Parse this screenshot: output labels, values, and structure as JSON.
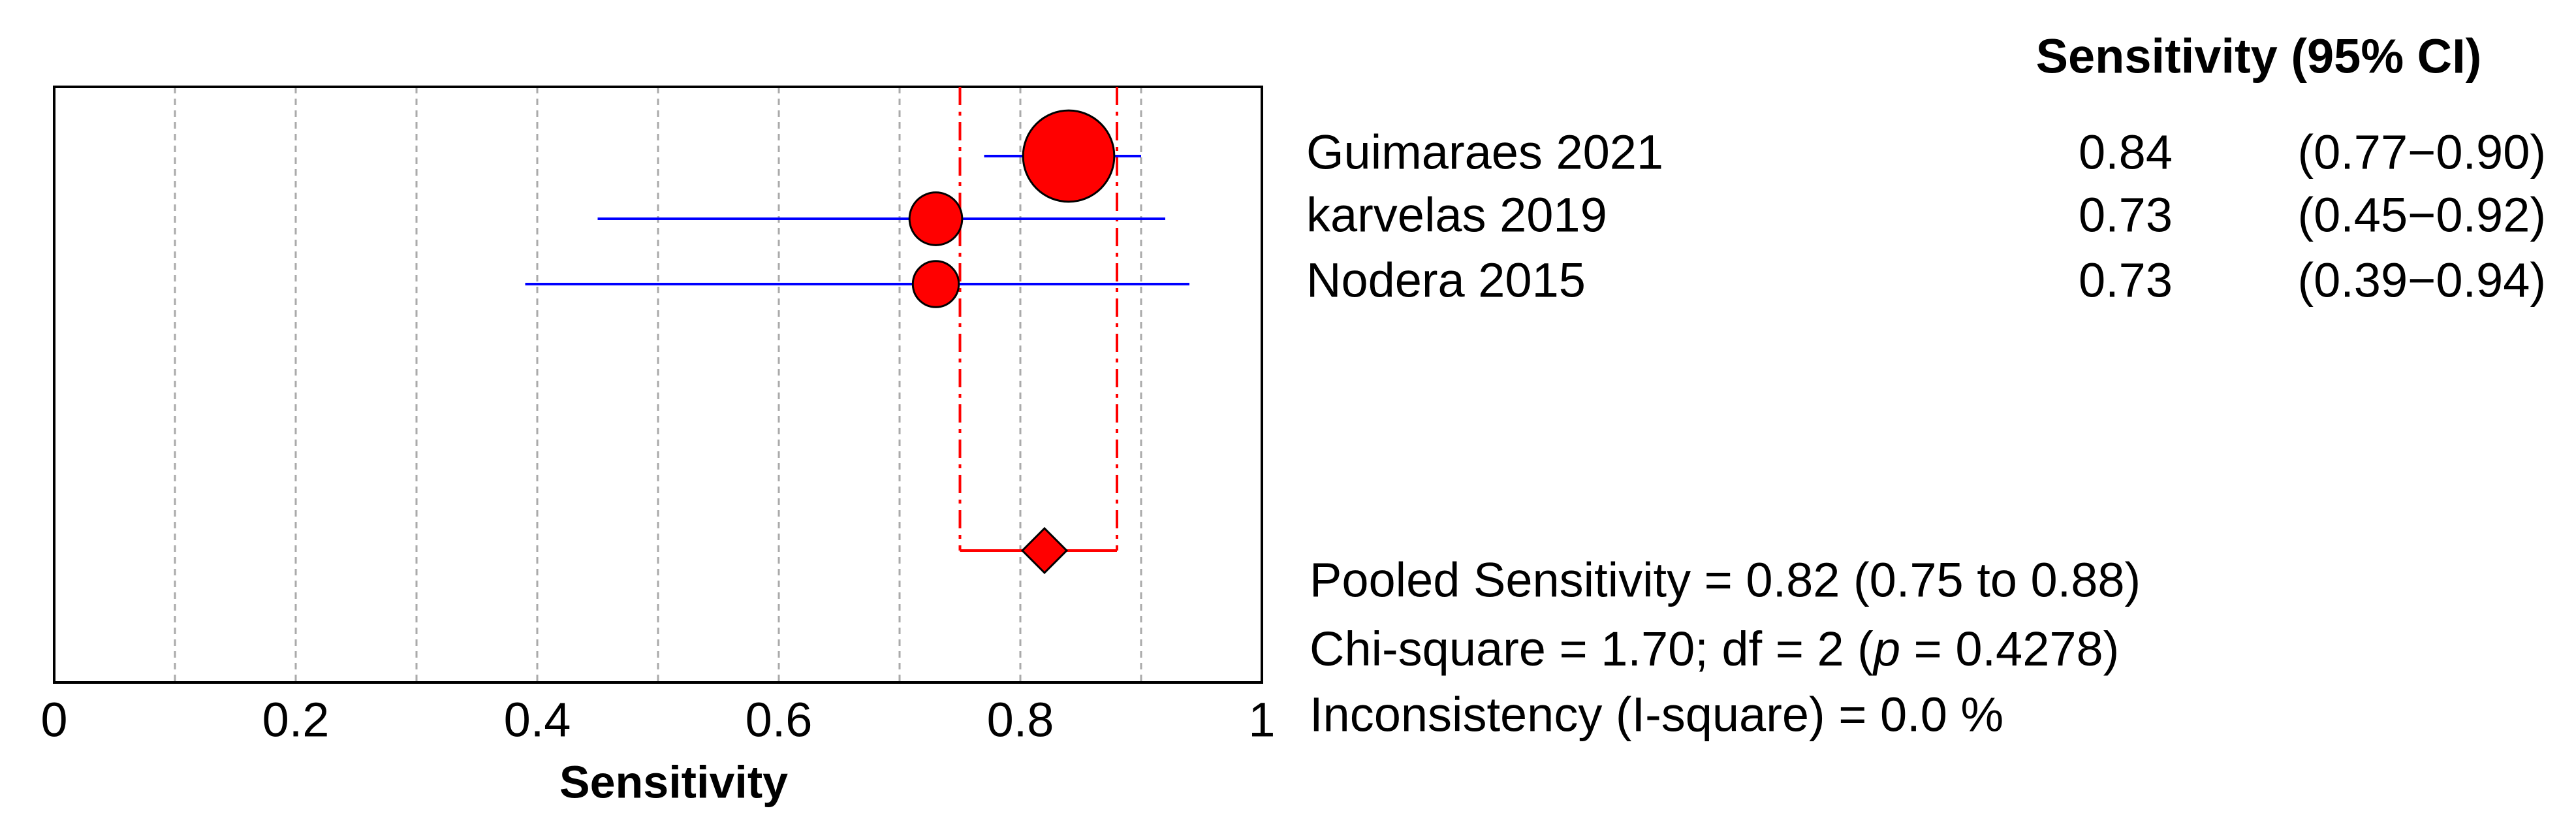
{
  "chart_data": {
    "type": "forest",
    "header": "Sensitivity (95% CI)",
    "xlabel": "Sensitivity",
    "xlim": [
      0,
      1
    ],
    "xticks": [
      0,
      0.2,
      0.4,
      0.6,
      0.8,
      1
    ],
    "grid_x": [
      0.1,
      0.2,
      0.3,
      0.4,
      0.5,
      0.6,
      0.7,
      0.8,
      0.9
    ],
    "studies": [
      "Guimaraes  2021",
      "karvelas 2019",
      "Nodera 2015"
    ],
    "values": [
      0.84,
      0.73,
      0.73
    ],
    "lower": [
      0.77,
      0.45,
      0.39
    ],
    "upper": [
      0.9,
      0.92,
      0.94
    ],
    "ci_labels": [
      "(0.77−0.90)",
      "(0.45−0.92)",
      "(0.39−0.94)"
    ],
    "weights": [
      63,
      21,
      16
    ],
    "point_color": "#ff0000",
    "ci_color": "#0000ff",
    "pooled": {
      "value": 0.82,
      "lower": 0.75,
      "upper": 0.88,
      "color": "#ff0000"
    },
    "stats": {
      "pooled_text": "Pooled Sensitivity = 0.82 (0.75 to 0.88)",
      "chi_text": "Chi-square = 1.70; df =  2 (",
      "p_symbol": "p",
      "p_text": " = 0.4278)",
      "inconsistency_text": "Inconsistency (I-square) = 0.0 %"
    }
  }
}
